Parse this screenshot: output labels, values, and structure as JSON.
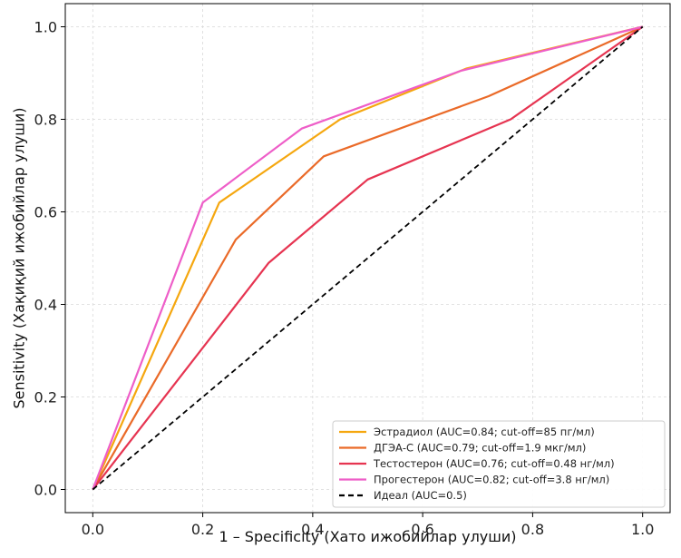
{
  "chart_data": {
    "type": "line",
    "xlabel": "1 – Specificity (Хато ижобийлар улуши)",
    "ylabel": "Sensitivity (Хақиқий ижобийлар улуши)",
    "xlim": [
      -0.05,
      1.05
    ],
    "ylim": [
      -0.05,
      1.05
    ],
    "xticks": [
      "0.0",
      "0.2",
      "0.4",
      "0.6",
      "0.8",
      "1.0"
    ],
    "yticks": [
      "0.0",
      "0.2",
      "0.4",
      "0.6",
      "0.8",
      "1.0"
    ],
    "grid": true,
    "legend_position": "bottom-right",
    "series": [
      {
        "name": "Эстрадиол (AUC=0.84; cut-off=85 пг/мл)",
        "color": "#f5a70f",
        "dashed": false,
        "x": [
          0.0,
          0.23,
          0.45,
          0.68,
          1.0
        ],
        "y": [
          0.0,
          0.62,
          0.8,
          0.91,
          1.0
        ]
      },
      {
        "name": "ДГЭА-С (AUC=0.79; cut-off=1.9 мкг/мл)",
        "color": "#ea6a28",
        "dashed": false,
        "x": [
          0.0,
          0.26,
          0.42,
          0.72,
          1.0
        ],
        "y": [
          0.0,
          0.54,
          0.72,
          0.85,
          1.0
        ]
      },
      {
        "name": "Тестостерон (AUC=0.76; cut-off=0.48 нг/мл)",
        "color": "#e63451",
        "dashed": false,
        "x": [
          0.0,
          0.32,
          0.5,
          0.76,
          1.0
        ],
        "y": [
          0.0,
          0.49,
          0.67,
          0.8,
          1.0
        ]
      },
      {
        "name": "Прогестерон (AUC=0.82; cut-off=3.8 нг/мл)",
        "color": "#ee5ec8",
        "dashed": false,
        "x": [
          0.0,
          0.2,
          0.38,
          0.67,
          1.0
        ],
        "y": [
          0.0,
          0.62,
          0.78,
          0.905,
          1.0
        ]
      },
      {
        "name": "Идеал (AUC=0.5)",
        "color": "#000000",
        "dashed": true,
        "x": [
          0.0,
          1.0
        ],
        "y": [
          0.0,
          1.0
        ]
      }
    ]
  }
}
